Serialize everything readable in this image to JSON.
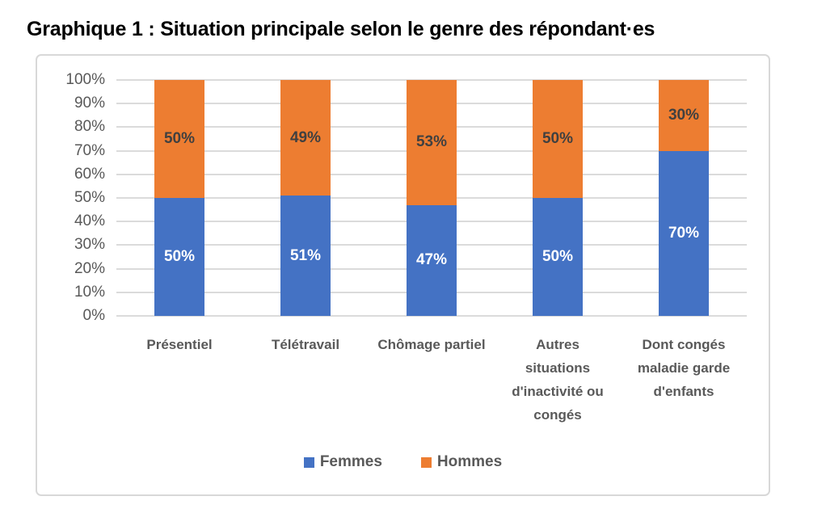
{
  "header": {
    "title": "Graphique 1 : Situation principale selon le genre des répondant·es"
  },
  "chart_data": {
    "type": "bar",
    "stacked": true,
    "percent_stacked": true,
    "title": "Graphique 1 : Situation principale selon le genre des répondant·es",
    "categories": [
      "Présentiel",
      "Télétravail",
      "Chômage partiel",
      "Autres situations d'inactivité ou congés",
      "Dont congés maladie garde d'enfants"
    ],
    "series": [
      {
        "name": "Femmes",
        "color": "#4472C4",
        "label_color": "#FFFFFF",
        "values": [
          50,
          51,
          47,
          50,
          70
        ]
      },
      {
        "name": "Hommes",
        "color": "#ED7D31",
        "label_color": "#404040",
        "values": [
          50,
          49,
          53,
          50,
          30
        ]
      }
    ],
    "data_label_format": "{value}%",
    "xlabel": "",
    "ylabel": "",
    "ylim": [
      0,
      100
    ],
    "y_ticks": [
      "0%",
      "10%",
      "20%",
      "30%",
      "40%",
      "50%",
      "60%",
      "70%",
      "80%",
      "90%",
      "100%"
    ],
    "grid": true,
    "gridline_color": "#DBDBDB",
    "legend_position": "bottom",
    "legend": [
      "Femmes",
      "Hommes"
    ],
    "tick_label_color": "#595959",
    "category_label_color": "#595959",
    "title_color": "#000000"
  }
}
